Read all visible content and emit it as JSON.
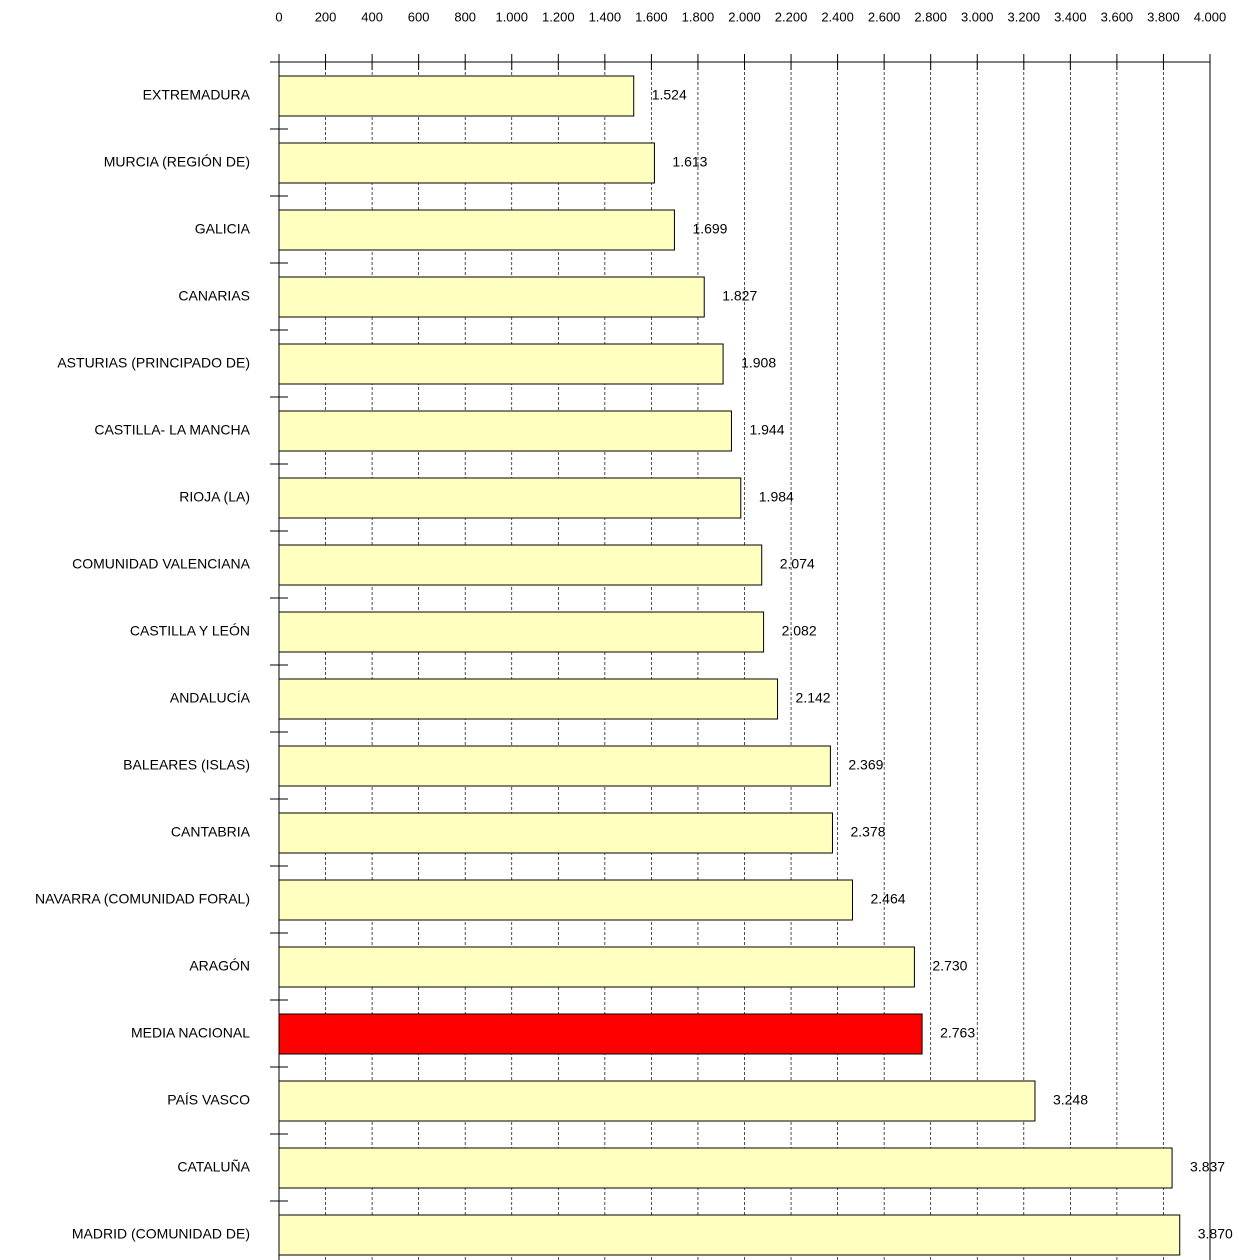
{
  "chart_data": {
    "type": "barh",
    "categories": [
      "EXTREMADURA",
      "MURCIA (REGIÓN DE)",
      "GALICIA",
      "CANARIAS",
      "ASTURIAS (PRINCIPADO DE)",
      "CASTILLA- LA MANCHA",
      "RIOJA (LA)",
      "COMUNIDAD VALENCIANA",
      "CASTILLA Y LEÓN",
      "ANDALUCÍA",
      "BALEARES (ISLAS)",
      "CANTABRIA",
      "NAVARRA (COMUNIDAD FORAL)",
      "ARAGÓN",
      "MEDIA NACIONAL",
      "PAÍS VASCO",
      "CATALUÑA",
      "MADRID (COMUNIDAD DE)"
    ],
    "values": [
      1524,
      1613,
      1699,
      1827,
      1908,
      1944,
      1984,
      2074,
      2082,
      2142,
      2369,
      2378,
      2464,
      2730,
      2763,
      3248,
      3837,
      3870
    ],
    "value_labels": [
      "1.524",
      "1.613",
      "1.699",
      "1.827",
      "1.908",
      "1.944",
      "1.984",
      "2.074",
      "2.082",
      "2.142",
      "2.369",
      "2.378",
      "2.464",
      "2.730",
      "2.763",
      "3.248",
      "3.837",
      "3.870"
    ],
    "colors": [
      "#ffffc0",
      "#ffffc0",
      "#ffffc0",
      "#ffffc0",
      "#ffffc0",
      "#ffffc0",
      "#ffffc0",
      "#ffffc0",
      "#ffffc0",
      "#ffffc0",
      "#ffffc0",
      "#ffffc0",
      "#ffffc0",
      "#ffffc0",
      "#ff0000",
      "#ffffc0",
      "#ffffc0",
      "#ffffc0"
    ],
    "xlim": [
      0,
      4000
    ],
    "xticks": [
      0,
      200,
      400,
      600,
      800,
      {
        "value": 1000,
        "label": "1.000"
      },
      {
        "value": 1200,
        "label": "1.200"
      },
      {
        "value": 1400,
        "label": "1.400"
      },
      {
        "value": 1600,
        "label": "1.600"
      },
      {
        "value": 1800,
        "label": "1.800"
      },
      {
        "value": 2000,
        "label": "2.000"
      },
      {
        "value": 2200,
        "label": "2.200"
      },
      {
        "value": 2400,
        "label": "2.400"
      },
      {
        "value": 2600,
        "label": "2.600"
      },
      {
        "value": 2800,
        "label": "2.800"
      },
      {
        "value": 3000,
        "label": "3.000"
      },
      {
        "value": 3200,
        "label": "3.200"
      },
      {
        "value": 3400,
        "label": "3.400"
      },
      {
        "value": 3600,
        "label": "3.600"
      },
      {
        "value": 3800,
        "label": "3.800"
      },
      {
        "value": 4000,
        "label": "4.000"
      }
    ],
    "grid": true
  }
}
